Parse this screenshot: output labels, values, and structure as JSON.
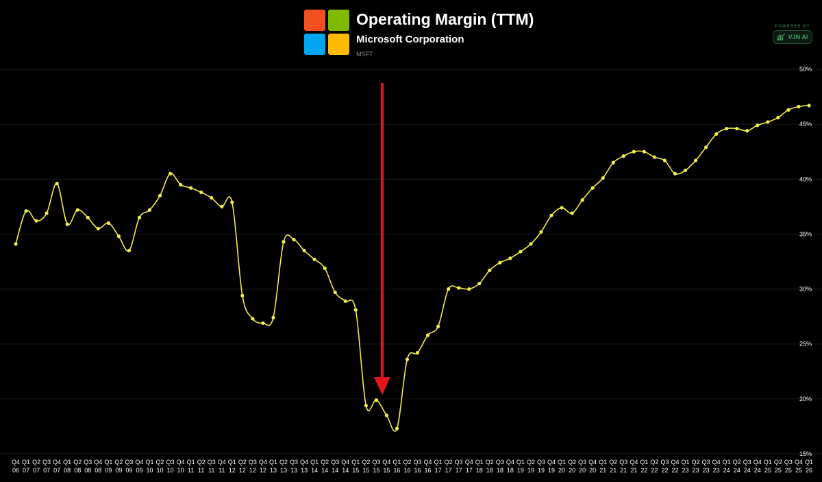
{
  "header": {
    "title": "Operating Margin (TTM)",
    "company": "Microsoft Corporation",
    "ticker": "MSFT",
    "logo_colors": [
      "#F25022",
      "#7FBA00",
      "#00A4EF",
      "#FFB900"
    ]
  },
  "badge": {
    "top": "POWERED BY",
    "label": "VJN AI",
    "icon": "chart-up-icon",
    "color": "#3fa565"
  },
  "colors": {
    "line": "#f2ee4a",
    "arrow": "#e0161b",
    "grid": "#1c1c1c",
    "background": "#000000"
  },
  "annotation": {
    "type": "arrow",
    "direction": "down",
    "points_to": "Q1 16"
  },
  "chart_data": {
    "type": "line",
    "title": "Operating Margin (TTM)",
    "yticks": [
      "50%",
      "45%",
      "40%",
      "35%",
      "30%",
      "25%",
      "20%",
      "15%"
    ],
    "ylim": [
      15,
      50
    ],
    "grid": true,
    "y_axis_position": "right",
    "x_quarters": [
      "Q4",
      "Q1",
      "Q2",
      "Q3",
      "Q4",
      "Q1",
      "Q2",
      "Q3",
      "Q4",
      "Q1",
      "Q2",
      "Q3",
      "Q4",
      "Q1",
      "Q2",
      "Q3",
      "Q4",
      "Q1",
      "Q2",
      "Q3",
      "Q4",
      "Q1",
      "Q2",
      "Q3",
      "Q4",
      "Q1",
      "Q2",
      "Q3",
      "Q4",
      "Q1",
      "Q2",
      "Q3",
      "Q4",
      "Q1",
      "Q2",
      "Q3",
      "Q4",
      "Q1",
      "Q2",
      "Q3",
      "Q4",
      "Q1",
      "Q2",
      "Q3",
      "Q4",
      "Q1",
      "Q2",
      "Q3",
      "Q4",
      "Q1",
      "Q2",
      "Q3",
      "Q4",
      "Q1",
      "Q2",
      "Q3",
      "Q4",
      "Q1",
      "Q2",
      "Q3",
      "Q4",
      "Q1",
      "Q2",
      "Q3",
      "Q4",
      "Q1",
      "Q2",
      "Q3",
      "Q4",
      "Q1",
      "Q2",
      "Q3",
      "Q4",
      "Q1",
      "Q2",
      "Q3",
      "Q4",
      "Q1"
    ],
    "x_years": [
      "06",
      "07",
      "07",
      "07",
      "07",
      "08",
      "08",
      "08",
      "08",
      "09",
      "09",
      "09",
      "09",
      "10",
      "10",
      "10",
      "10",
      "11",
      "11",
      "11",
      "11",
      "12",
      "12",
      "12",
      "12",
      "13",
      "13",
      "13",
      "13",
      "14",
      "14",
      "14",
      "14",
      "15",
      "15",
      "15",
      "15",
      "16",
      "16",
      "16",
      "16",
      "17",
      "17",
      "17",
      "17",
      "18",
      "18",
      "18",
      "18",
      "19",
      "19",
      "19",
      "19",
      "20",
      "20",
      "20",
      "20",
      "21",
      "21",
      "21",
      "21",
      "22",
      "22",
      "22",
      "22",
      "23",
      "23",
      "23",
      "23",
      "24",
      "24",
      "24",
      "24",
      "25",
      "25",
      "25",
      "25",
      "26"
    ],
    "series": [
      {
        "values": [
          34.1,
          37.1,
          36.2,
          36.9,
          39.6,
          35.9,
          37.2,
          36.5,
          35.5,
          36.0,
          34.8,
          33.5,
          36.5,
          37.2,
          38.5,
          40.5,
          39.5,
          39.2,
          38.8,
          38.3,
          37.5,
          37.9,
          29.4,
          27.3,
          26.9,
          27.4,
          34.3,
          34.5,
          33.5,
          32.7,
          31.9,
          29.7,
          28.9,
          28.1,
          19.4,
          19.9,
          18.5,
          17.3,
          23.6,
          24.2,
          25.8,
          26.6,
          30.0,
          30.1,
          30.0,
          30.5,
          31.7,
          32.4,
          32.8,
          33.4,
          34.1,
          35.2,
          36.7,
          37.4,
          36.9,
          38.1,
          39.2,
          40.1,
          41.5,
          42.1,
          42.5,
          42.5,
          42.0,
          41.7,
          40.5,
          40.8,
          41.7,
          42.9,
          44.1,
          44.6,
          44.6,
          44.4,
          44.9,
          45.2,
          45.6,
          46.3,
          46.6,
          46.7
        ]
      }
    ]
  }
}
